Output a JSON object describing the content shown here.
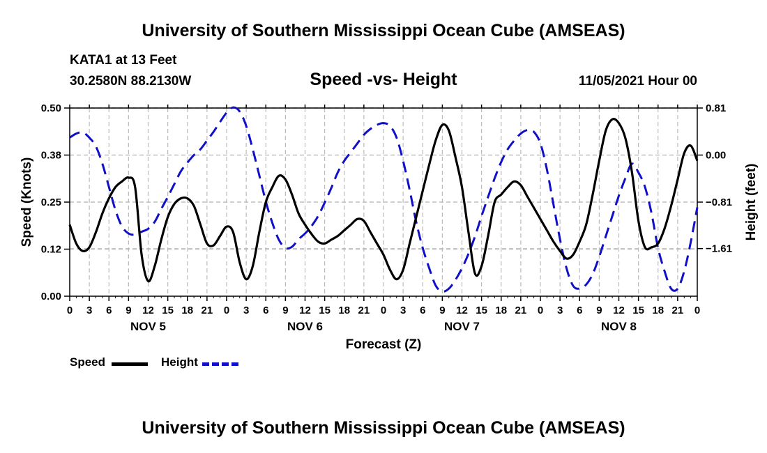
{
  "page": {
    "top_title": "University of Southern Mississippi Ocean Cube (AMSEAS)",
    "bottom_title": "University of Southern Mississippi Ocean Cube (AMSEAS)",
    "station_line": "KATA1 at 13 Feet",
    "coord_line": "30.2580N  88.2130W",
    "subtitle": "Speed -vs- Height",
    "datetime": "11/05/2021 Hour 00"
  },
  "colors": {
    "speed": "#000000",
    "height": "#1010c8",
    "grid": "#bbbbbb"
  },
  "chart_data": {
    "type": "line",
    "title": "Speed -vs- Height",
    "xlabel": "Forecast (Z)",
    "ylabel": "Speed (Knots)",
    "y2label": "Height (feet)",
    "xlim": [
      0,
      96
    ],
    "ylim": [
      0,
      0.5
    ],
    "y2lim": [
      -2.43,
      0.81
    ],
    "left_ticks": [
      "0.00",
      "0.12",
      "0.25",
      "0.38",
      "0.50"
    ],
    "left_tick_values": [
      0,
      0.125,
      0.25,
      0.375,
      0.5
    ],
    "right_ticks": [
      "−1.61",
      "−0.81",
      "0.00",
      "0.81"
    ],
    "right_tick_values": [
      -1.61,
      -0.81,
      0,
      0.81
    ],
    "x_ticks": [
      "0",
      "3",
      "6",
      "9",
      "12",
      "15",
      "18",
      "21",
      "0",
      "3",
      "6",
      "9",
      "12",
      "15",
      "18",
      "21",
      "0",
      "3",
      "6",
      "9",
      "12",
      "15",
      "18",
      "21",
      "0",
      "3",
      "6",
      "9",
      "12",
      "15",
      "18",
      "21",
      "0"
    ],
    "x_tick_values": [
      0,
      3,
      6,
      9,
      12,
      15,
      18,
      21,
      24,
      27,
      30,
      33,
      36,
      39,
      42,
      45,
      48,
      51,
      54,
      57,
      60,
      63,
      66,
      69,
      72,
      75,
      78,
      81,
      84,
      87,
      90,
      93,
      96
    ],
    "day_labels": [
      "NOV 5",
      "NOV 6",
      "NOV 7",
      "NOV 8"
    ],
    "day_label_hours": [
      12,
      36,
      60,
      84
    ],
    "series": [
      {
        "name": "Speed",
        "style": "solid",
        "axis": "left",
        "x": [
          0,
          1,
          2,
          3,
          4,
          5,
          6,
          7,
          8,
          9,
          10,
          11,
          12,
          13,
          14,
          15,
          16,
          17,
          18,
          19,
          20,
          21,
          22,
          23,
          24,
          25,
          26,
          27,
          28,
          29,
          30,
          31,
          32,
          33,
          34,
          35,
          36,
          37,
          38,
          39,
          40,
          41,
          42,
          43,
          44,
          45,
          46,
          47,
          48,
          49,
          50,
          51,
          52,
          53,
          54,
          55,
          56,
          57,
          58,
          59,
          60,
          61,
          62,
          63,
          64,
          65,
          66,
          67,
          68,
          69,
          70,
          71,
          72,
          73,
          74,
          75,
          76,
          77,
          78,
          79,
          80,
          81,
          82,
          83,
          84,
          85,
          86,
          87,
          88,
          89,
          90,
          91,
          92,
          93,
          94,
          95,
          96
        ],
        "values": [
          0.19,
          0.14,
          0.12,
          0.13,
          0.17,
          0.22,
          0.26,
          0.29,
          0.305,
          0.315,
          0.29,
          0.11,
          0.04,
          0.08,
          0.15,
          0.21,
          0.245,
          0.26,
          0.26,
          0.24,
          0.19,
          0.14,
          0.135,
          0.16,
          0.185,
          0.17,
          0.09,
          0.045,
          0.08,
          0.17,
          0.25,
          0.29,
          0.32,
          0.31,
          0.27,
          0.22,
          0.19,
          0.165,
          0.145,
          0.14,
          0.15,
          0.16,
          0.175,
          0.19,
          0.205,
          0.2,
          0.17,
          0.14,
          0.11,
          0.07,
          0.045,
          0.07,
          0.14,
          0.21,
          0.28,
          0.35,
          0.415,
          0.455,
          0.44,
          0.37,
          0.29,
          0.17,
          0.06,
          0.08,
          0.16,
          0.25,
          0.27,
          0.29,
          0.305,
          0.295,
          0.265,
          0.235,
          0.205,
          0.175,
          0.145,
          0.12,
          0.1,
          0.11,
          0.145,
          0.19,
          0.27,
          0.36,
          0.44,
          0.47,
          0.46,
          0.42,
          0.33,
          0.2,
          0.13,
          0.13,
          0.14,
          0.18,
          0.24,
          0.31,
          0.38,
          0.4,
          0.36
        ]
      },
      {
        "name": "Height",
        "style": "dashed",
        "axis": "right",
        "x": [
          0,
          1,
          2,
          3,
          4,
          5,
          6,
          7,
          8,
          9,
          10,
          11,
          12,
          13,
          14,
          15,
          16,
          17,
          18,
          19,
          20,
          21,
          22,
          23,
          24,
          25,
          26,
          27,
          28,
          29,
          30,
          31,
          32,
          33,
          34,
          35,
          36,
          37,
          38,
          39,
          40,
          41,
          42,
          43,
          44,
          45,
          46,
          47,
          48,
          49,
          50,
          51,
          52,
          53,
          54,
          55,
          56,
          57,
          58,
          59,
          60,
          61,
          62,
          63,
          64,
          65,
          66,
          67,
          68,
          69,
          70,
          71,
          72,
          73,
          74,
          75,
          76,
          77,
          78,
          79,
          80,
          81,
          82,
          83,
          84,
          85,
          86,
          87,
          88,
          89,
          90,
          91,
          92,
          93,
          94,
          95,
          96
        ],
        "values": [
          0.3,
          0.37,
          0.39,
          0.3,
          0.15,
          -0.15,
          -0.55,
          -0.95,
          -1.23,
          -1.35,
          -1.37,
          -1.32,
          -1.27,
          -1.15,
          -0.93,
          -0.72,
          -0.5,
          -0.28,
          -0.13,
          0.0,
          0.1,
          0.25,
          0.4,
          0.57,
          0.73,
          0.82,
          0.75,
          0.5,
          0.1,
          -0.35,
          -0.8,
          -1.17,
          -1.46,
          -1.6,
          -1.58,
          -1.45,
          -1.35,
          -1.22,
          -1.05,
          -0.82,
          -0.57,
          -0.3,
          -0.1,
          0.05,
          0.2,
          0.35,
          0.45,
          0.52,
          0.55,
          0.5,
          0.3,
          -0.1,
          -0.6,
          -1.15,
          -1.6,
          -1.95,
          -2.25,
          -2.35,
          -2.3,
          -2.15,
          -1.95,
          -1.7,
          -1.4,
          -1.05,
          -0.72,
          -0.4,
          -0.12,
          0.1,
          0.25,
          0.37,
          0.43,
          0.4,
          0.2,
          -0.25,
          -0.85,
          -1.45,
          -1.95,
          -2.25,
          -2.3,
          -2.23,
          -2.05,
          -1.75,
          -1.4,
          -1.05,
          -0.7,
          -0.4,
          -0.15,
          -0.3,
          -0.55,
          -1.0,
          -1.6,
          -2.0,
          -2.3,
          -2.3,
          -2.0,
          -1.5,
          -0.9
        ]
      }
    ],
    "legend": [
      "Speed",
      "Height"
    ],
    "grid": true
  }
}
